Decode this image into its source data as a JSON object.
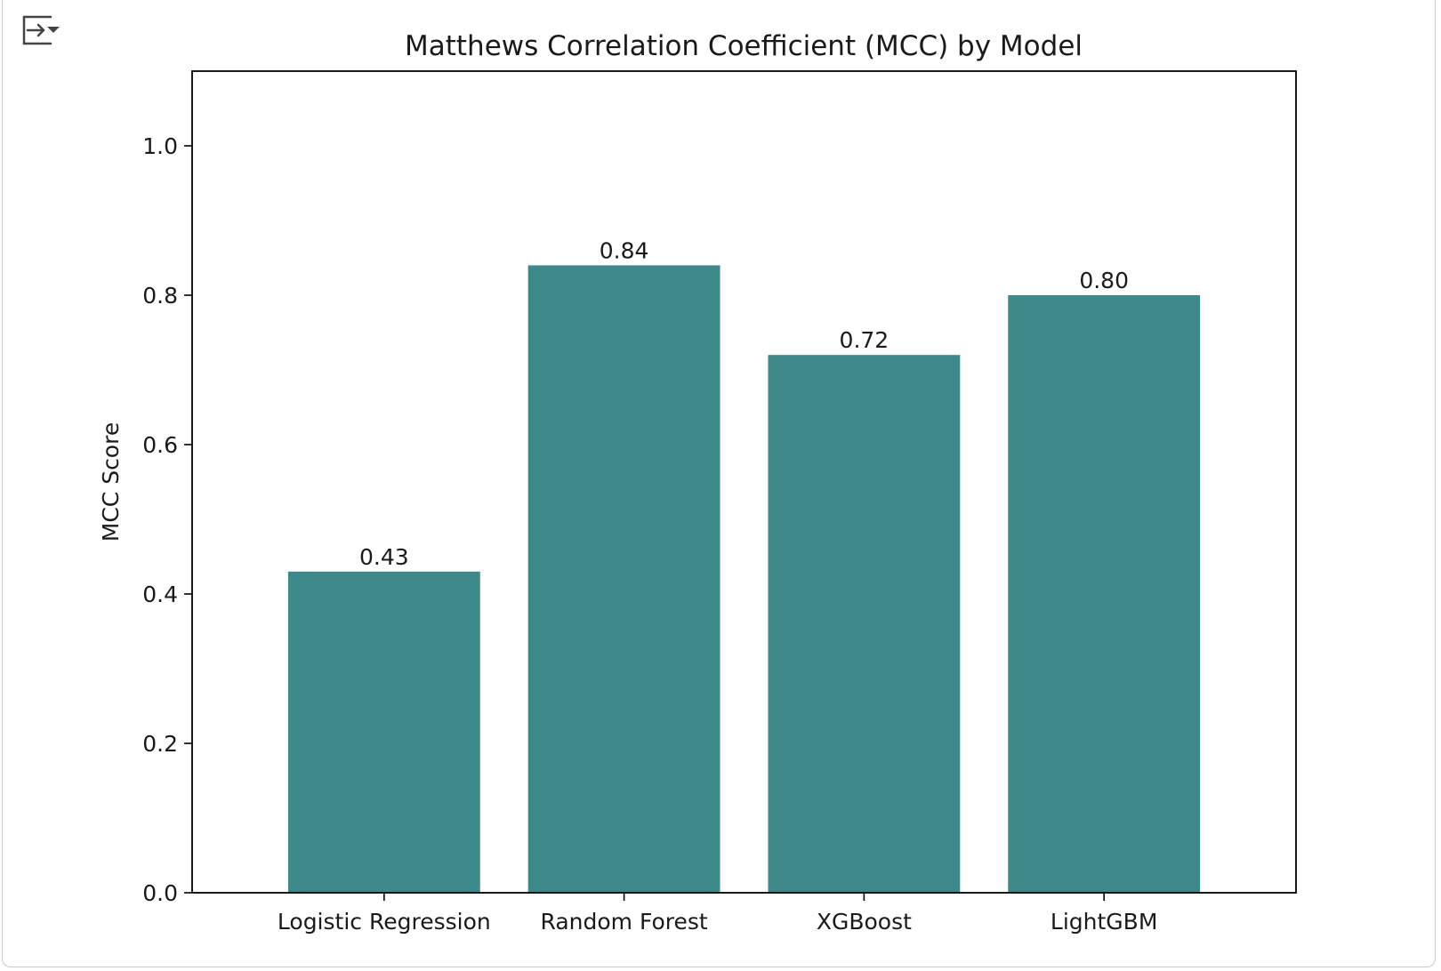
{
  "toolbar": {
    "icon": "output-collapse-icon"
  },
  "chart_data": {
    "type": "bar",
    "title": "Matthews Correlation Coefficient (MCC) by Model",
    "xlabel": "",
    "ylabel": "MCC Score",
    "categories": [
      "Logistic Regression",
      "Random Forest",
      "XGBoost",
      "LightGBM"
    ],
    "values": [
      0.43,
      0.84,
      0.72,
      0.8
    ],
    "data_labels": [
      "0.43",
      "0.84",
      "0.72",
      "0.80"
    ],
    "ylim": [
      0.0,
      1.1
    ],
    "yticks": [
      0.0,
      0.2,
      0.4,
      0.6,
      0.8,
      1.0
    ],
    "ytick_labels": [
      "0.0",
      "0.2",
      "0.4",
      "0.6",
      "0.8",
      "1.0"
    ],
    "bar_color": "#3d8888",
    "grid": false,
    "legend": "none"
  }
}
